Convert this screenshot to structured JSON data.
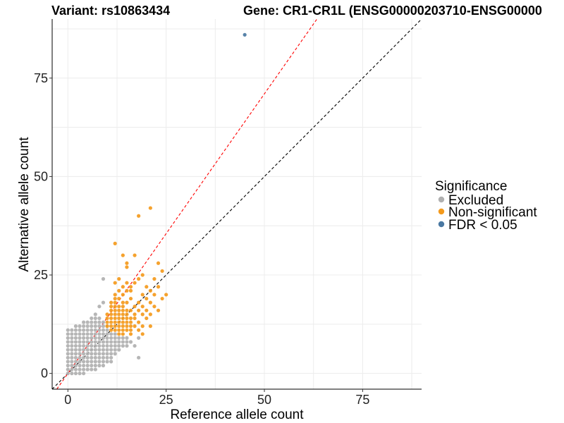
{
  "chart_data": {
    "type": "scatter",
    "title_left": "Variant: rs10863434",
    "title_right": "Gene: CR1-CR1L (ENSG00000203710-ENSG00000",
    "xlabel": "Reference allele count",
    "ylabel": "Alternative allele count",
    "xlim": [
      -4,
      90
    ],
    "ylim": [
      -4,
      90
    ],
    "x_ticks": [
      0,
      25,
      50,
      75
    ],
    "y_ticks": [
      0,
      25,
      50,
      75
    ],
    "grid": true,
    "legend": {
      "title": "Significance",
      "position": "right",
      "entries": [
        {
          "label": "Excluded",
          "color": "#b0b0b0"
        },
        {
          "label": "Non-significant",
          "color": "#f49a1c"
        },
        {
          "label": "FDR < 0.05",
          "color": "#4a78a2"
        }
      ]
    },
    "reference_lines": [
      {
        "name": "black-dashed",
        "slope": 1,
        "intercept": 0,
        "color": "#000000"
      },
      {
        "name": "red-dashed",
        "slope": 1.42,
        "intercept": 0,
        "color": "#ff0000"
      }
    ],
    "series": [
      {
        "name": "Excluded",
        "color": "#b0b0b0",
        "points": [
          [
            0,
            0
          ],
          [
            0,
            1
          ],
          [
            0,
            2
          ],
          [
            0,
            3
          ],
          [
            0,
            4
          ],
          [
            0,
            5
          ],
          [
            0,
            6
          ],
          [
            0,
            7
          ],
          [
            0,
            8
          ],
          [
            0,
            9
          ],
          [
            0,
            10
          ],
          [
            0,
            11
          ],
          [
            1,
            0
          ],
          [
            1,
            1
          ],
          [
            1,
            2
          ],
          [
            1,
            3
          ],
          [
            1,
            4
          ],
          [
            1,
            5
          ],
          [
            1,
            6
          ],
          [
            1,
            7
          ],
          [
            1,
            8
          ],
          [
            1,
            9
          ],
          [
            1,
            10
          ],
          [
            1,
            11
          ],
          [
            2,
            0
          ],
          [
            2,
            1
          ],
          [
            2,
            2
          ],
          [
            2,
            3
          ],
          [
            2,
            4
          ],
          [
            2,
            5
          ],
          [
            2,
            6
          ],
          [
            2,
            7
          ],
          [
            2,
            8
          ],
          [
            2,
            9
          ],
          [
            2,
            10
          ],
          [
            2,
            11
          ],
          [
            2,
            12
          ],
          [
            3,
            0
          ],
          [
            3,
            1
          ],
          [
            3,
            2
          ],
          [
            3,
            3
          ],
          [
            3,
            4
          ],
          [
            3,
            5
          ],
          [
            3,
            6
          ],
          [
            3,
            7
          ],
          [
            3,
            8
          ],
          [
            3,
            9
          ],
          [
            3,
            10
          ],
          [
            3,
            11
          ],
          [
            3,
            12
          ],
          [
            4,
            0
          ],
          [
            4,
            1
          ],
          [
            4,
            2
          ],
          [
            4,
            3
          ],
          [
            4,
            4
          ],
          [
            4,
            5
          ],
          [
            4,
            6
          ],
          [
            4,
            7
          ],
          [
            4,
            8
          ],
          [
            4,
            9
          ],
          [
            4,
            10
          ],
          [
            4,
            11
          ],
          [
            4,
            12
          ],
          [
            4,
            13
          ],
          [
            5,
            1
          ],
          [
            5,
            2
          ],
          [
            5,
            3
          ],
          [
            5,
            4
          ],
          [
            5,
            5
          ],
          [
            5,
            6
          ],
          [
            5,
            7
          ],
          [
            5,
            8
          ],
          [
            5,
            9
          ],
          [
            5,
            10
          ],
          [
            5,
            11
          ],
          [
            5,
            12
          ],
          [
            5,
            13
          ],
          [
            6,
            1
          ],
          [
            6,
            2
          ],
          [
            6,
            3
          ],
          [
            6,
            4
          ],
          [
            6,
            5
          ],
          [
            6,
            6
          ],
          [
            6,
            7
          ],
          [
            6,
            8
          ],
          [
            6,
            9
          ],
          [
            6,
            10
          ],
          [
            6,
            11
          ],
          [
            6,
            12
          ],
          [
            6,
            13
          ],
          [
            6,
            14
          ],
          [
            7,
            1
          ],
          [
            7,
            2
          ],
          [
            7,
            3
          ],
          [
            7,
            4
          ],
          [
            7,
            5
          ],
          [
            7,
            6
          ],
          [
            7,
            7
          ],
          [
            7,
            8
          ],
          [
            7,
            9
          ],
          [
            7,
            10
          ],
          [
            7,
            11
          ],
          [
            7,
            12
          ],
          [
            7,
            13
          ],
          [
            7,
            14
          ],
          [
            7,
            15
          ],
          [
            8,
            2
          ],
          [
            8,
            3
          ],
          [
            8,
            4
          ],
          [
            8,
            5
          ],
          [
            8,
            6
          ],
          [
            8,
            7
          ],
          [
            8,
            8
          ],
          [
            8,
            9
          ],
          [
            8,
            10
          ],
          [
            8,
            11
          ],
          [
            8,
            12
          ],
          [
            8,
            13
          ],
          [
            8,
            14
          ],
          [
            8,
            17
          ],
          [
            9,
            2
          ],
          [
            9,
            3
          ],
          [
            9,
            4
          ],
          [
            9,
            5
          ],
          [
            9,
            6
          ],
          [
            9,
            7
          ],
          [
            9,
            8
          ],
          [
            9,
            9
          ],
          [
            9,
            10
          ],
          [
            9,
            11
          ],
          [
            9,
            12
          ],
          [
            9,
            13
          ],
          [
            9,
            18
          ],
          [
            9,
            24
          ],
          [
            10,
            3
          ],
          [
            10,
            4
          ],
          [
            10,
            5
          ],
          [
            10,
            6
          ],
          [
            10,
            7
          ],
          [
            10,
            8
          ],
          [
            10,
            9
          ],
          [
            10,
            10
          ],
          [
            10,
            11
          ],
          [
            10,
            12
          ],
          [
            11,
            3
          ],
          [
            11,
            4
          ],
          [
            11,
            5
          ],
          [
            11,
            6
          ],
          [
            11,
            7
          ],
          [
            11,
            8
          ],
          [
            11,
            9
          ],
          [
            11,
            10
          ],
          [
            12,
            5
          ],
          [
            12,
            6
          ],
          [
            12,
            7
          ],
          [
            12,
            8
          ],
          [
            12,
            9
          ],
          [
            12,
            10
          ],
          [
            13,
            6
          ],
          [
            13,
            7
          ],
          [
            13,
            8
          ],
          [
            13,
            9
          ],
          [
            14,
            7
          ],
          [
            14,
            8
          ],
          [
            14,
            9
          ],
          [
            15,
            7
          ],
          [
            15,
            8
          ],
          [
            15,
            9
          ],
          [
            16,
            8
          ],
          [
            17,
            7
          ],
          [
            18,
            4
          ],
          [
            18,
            9
          ]
        ]
      },
      {
        "name": "Non-significant",
        "color": "#f49a1c",
        "points": [
          [
            10,
            12
          ],
          [
            10,
            13
          ],
          [
            10,
            14
          ],
          [
            10,
            15
          ],
          [
            11,
            11
          ],
          [
            11,
            12
          ],
          [
            11,
            13
          ],
          [
            11,
            14
          ],
          [
            11,
            15
          ],
          [
            11,
            16
          ],
          [
            11,
            17
          ],
          [
            11,
            18
          ],
          [
            12,
            11
          ],
          [
            12,
            12
          ],
          [
            12,
            13
          ],
          [
            12,
            14
          ],
          [
            12,
            15
          ],
          [
            12,
            16
          ],
          [
            12,
            17
          ],
          [
            12,
            18
          ],
          [
            12,
            19
          ],
          [
            12,
            20
          ],
          [
            12,
            23
          ],
          [
            12,
            33
          ],
          [
            13,
            10
          ],
          [
            13,
            11
          ],
          [
            13,
            12
          ],
          [
            13,
            13
          ],
          [
            13,
            14
          ],
          [
            13,
            15
          ],
          [
            13,
            16
          ],
          [
            13,
            17
          ],
          [
            13,
            19
          ],
          [
            13,
            21
          ],
          [
            13,
            24
          ],
          [
            14,
            10
          ],
          [
            14,
            11
          ],
          [
            14,
            12
          ],
          [
            14,
            13
          ],
          [
            14,
            14
          ],
          [
            14,
            15
          ],
          [
            14,
            16
          ],
          [
            14,
            17
          ],
          [
            14,
            18
          ],
          [
            14,
            20
          ],
          [
            14,
            22
          ],
          [
            14,
            30
          ],
          [
            15,
            11
          ],
          [
            15,
            12
          ],
          [
            15,
            13
          ],
          [
            15,
            14
          ],
          [
            15,
            15
          ],
          [
            15,
            16
          ],
          [
            15,
            18
          ],
          [
            15,
            21
          ],
          [
            15,
            23
          ],
          [
            15,
            27
          ],
          [
            15,
            28
          ],
          [
            16,
            10
          ],
          [
            16,
            11
          ],
          [
            16,
            12
          ],
          [
            16,
            13
          ],
          [
            16,
            14
          ],
          [
            16,
            16
          ],
          [
            16,
            19
          ],
          [
            16,
            21
          ],
          [
            16,
            22
          ],
          [
            17,
            12
          ],
          [
            17,
            14
          ],
          [
            17,
            15
          ],
          [
            17,
            17
          ],
          [
            17,
            23
          ],
          [
            17,
            30
          ],
          [
            18,
            11
          ],
          [
            18,
            13
          ],
          [
            18,
            16
          ],
          [
            18,
            18
          ],
          [
            18,
            24
          ],
          [
            18,
            40
          ],
          [
            19,
            10
          ],
          [
            19,
            12
          ],
          [
            19,
            15
          ],
          [
            19,
            17
          ],
          [
            19,
            20
          ],
          [
            19,
            25
          ],
          [
            20,
            14
          ],
          [
            20,
            16
          ],
          [
            20,
            19
          ],
          [
            20,
            22
          ],
          [
            21,
            12
          ],
          [
            21,
            15
          ],
          [
            21,
            18
          ],
          [
            21,
            21
          ],
          [
            21,
            42
          ],
          [
            22,
            17
          ],
          [
            22,
            20
          ],
          [
            22,
            24
          ],
          [
            23,
            16
          ],
          [
            23,
            22
          ],
          [
            23,
            28
          ],
          [
            24,
            19
          ],
          [
            24,
            26
          ],
          [
            25,
            20
          ]
        ]
      },
      {
        "name": "FDR < 0.05",
        "color": "#4a78a2",
        "points": [
          [
            45,
            86
          ]
        ]
      }
    ]
  }
}
